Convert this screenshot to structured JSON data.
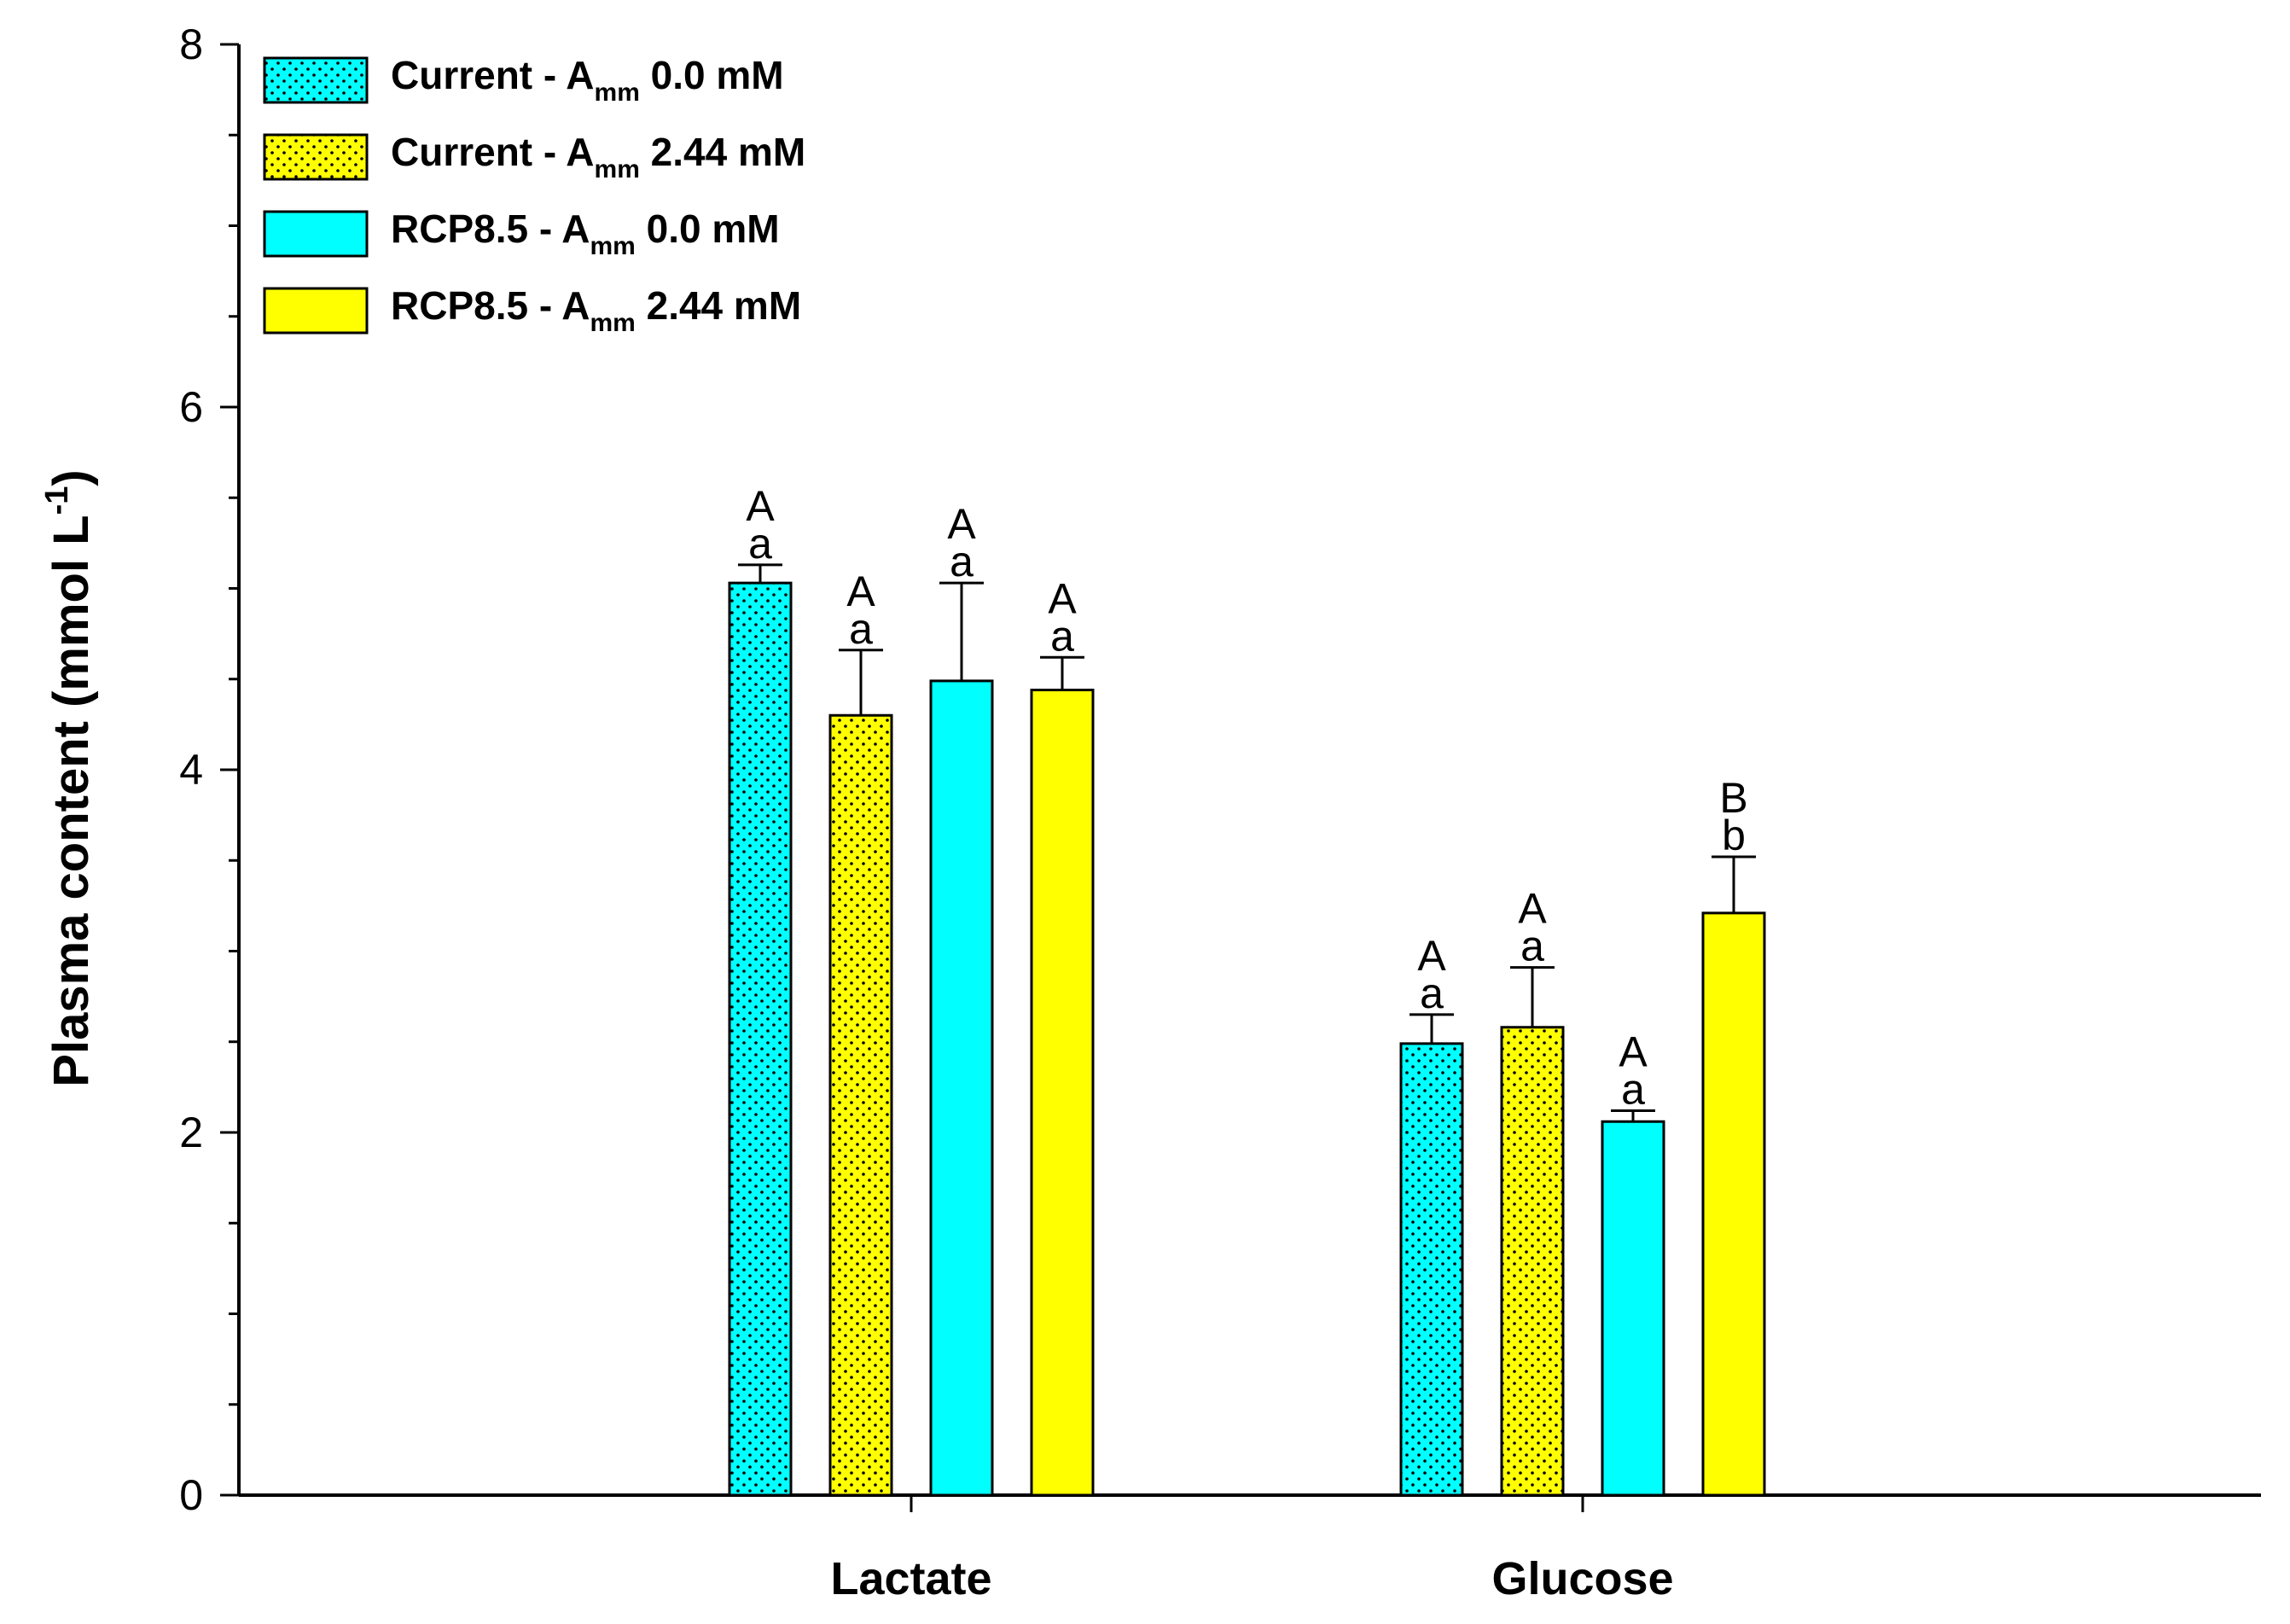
{
  "chart_data": {
    "type": "bar",
    "title": "",
    "xlabel": "",
    "ylabel": "Plasma content (mmol L",
    "ylabel_superscript": "-1",
    "ylabel_close": ")",
    "ylim": [
      0,
      8
    ],
    "yticks": [
      "0",
      "2",
      "4",
      "6",
      "8"
    ],
    "ytick_values": [
      0,
      2,
      4,
      6,
      8
    ],
    "categories": [
      "Lactate",
      "Glucose"
    ],
    "legend_position": "top-left",
    "series": [
      {
        "name": "Current - Amm 0.0 mM",
        "label_main": "Current - A",
        "label_sub": "mm",
        "label_tail": " 0.0 mM",
        "color": "#00FFFF",
        "dotted": true,
        "values": [
          5.03,
          2.49
        ],
        "errors": [
          0.1,
          0.16
        ],
        "sig_upper": [
          "A",
          "A"
        ],
        "sig_lower": [
          "a",
          "a"
        ]
      },
      {
        "name": "Current - Amm 2.44 mM",
        "label_main": "Current - A",
        "label_sub": "mm",
        "label_tail": " 2.44 mM",
        "color": "#FFFF00",
        "dotted": true,
        "values": [
          4.3,
          2.58
        ],
        "errors": [
          0.36,
          0.33
        ],
        "sig_upper": [
          "A",
          "A"
        ],
        "sig_lower": [
          "a",
          "a"
        ]
      },
      {
        "name": "RCP8.5 - Amm 0.0 mM",
        "label_main": "RCP8.5 - A",
        "label_sub": "mm",
        "label_tail": " 0.0 mM",
        "color": "#00FFFF",
        "dotted": false,
        "values": [
          4.49,
          2.06
        ],
        "errors": [
          0.54,
          0.06
        ],
        "sig_upper": [
          "A",
          "A"
        ],
        "sig_lower": [
          "a",
          "a"
        ]
      },
      {
        "name": "RCP8.5 - Amm 2.44 mM",
        "label_main": "RCP8.5 - A",
        "label_sub": "mm",
        "label_tail": " 2.44 mM",
        "color": "#FFFF00",
        "dotted": false,
        "values": [
          4.44,
          3.21
        ],
        "errors": [
          0.18,
          0.31
        ],
        "sig_upper": [
          "A",
          "B"
        ],
        "sig_lower": [
          "a",
          "b"
        ]
      }
    ]
  }
}
